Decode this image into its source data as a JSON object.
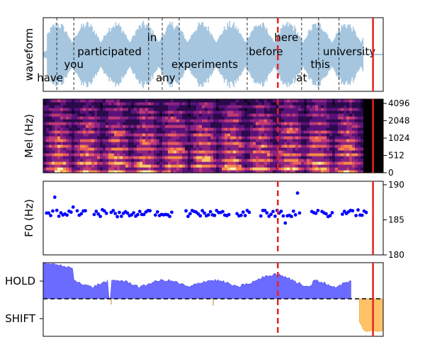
{
  "chart_data": [
    {
      "type": "waveform",
      "ylabel": "waveform",
      "word_labels": [
        {
          "text": "have",
          "t": 0.02,
          "row": 3
        },
        {
          "text": "you",
          "t": 0.09,
          "row": 2
        },
        {
          "text": "participated",
          "t": 0.195,
          "row": 1
        },
        {
          "text": "in",
          "t": 0.32,
          "row": 0
        },
        {
          "text": "any",
          "t": 0.36,
          "row": 3
        },
        {
          "text": "experiments",
          "t": 0.475,
          "row": 2
        },
        {
          "text": "before",
          "t": 0.655,
          "row": 1
        },
        {
          "text": "here",
          "t": 0.715,
          "row": 0
        },
        {
          "text": "at",
          "t": 0.76,
          "row": 3
        },
        {
          "text": "this",
          "t": 0.815,
          "row": 2
        },
        {
          "text": "university",
          "t": 0.9,
          "row": 1
        }
      ],
      "word_boundaries": [
        0.04,
        0.09,
        0.31,
        0.35,
        0.4,
        0.6,
        0.76,
        0.81,
        0.87
      ],
      "active_until": 0.94
    },
    {
      "type": "heatmap",
      "ylabel": "Mel (Hz)",
      "yticks": [
        "0",
        "512",
        "1024",
        "2048",
        "4096"
      ]
    },
    {
      "type": "scatter",
      "ylabel": "F0 (Hz)",
      "ylim": [
        180,
        190.5
      ],
      "yticks": [
        180,
        185,
        190
      ]
    },
    {
      "type": "area",
      "yticklabels": [
        "HOLD",
        "SHIFT"
      ],
      "threshold_line": "dashed"
    }
  ],
  "markers": {
    "dashed_red_t": 0.69,
    "solid_red_t": 0.97
  },
  "colors": {
    "waveform": "#a6c6df",
    "scatter": "#0000ff",
    "hold_fill": "#6b6bff",
    "shift_fill": "#ffc266",
    "marker": "#e8211f"
  }
}
